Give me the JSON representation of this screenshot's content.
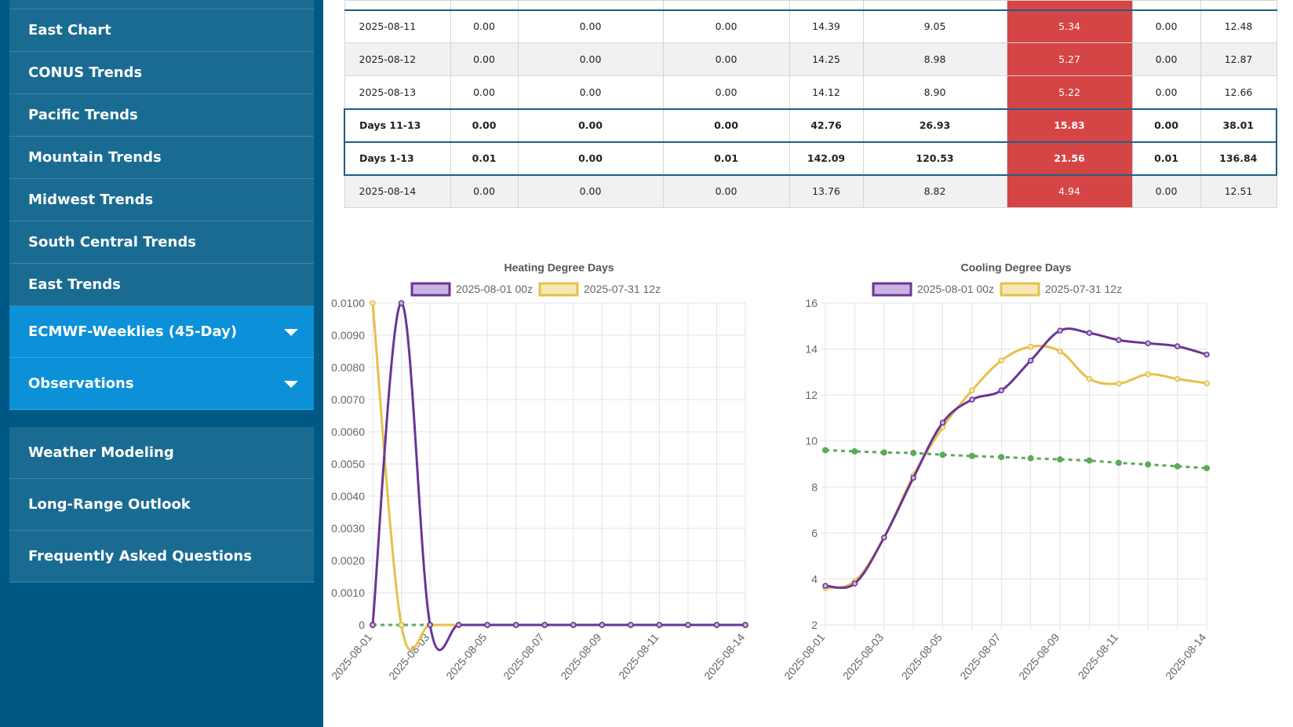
{
  "sidebar": {
    "items": [
      {
        "label": "East Chart"
      },
      {
        "label": "CONUS Trends"
      },
      {
        "label": "Pacific Trends"
      },
      {
        "label": "Mountain Trends"
      },
      {
        "label": "Midwest Trends"
      },
      {
        "label": "South Central Trends"
      },
      {
        "label": "East Trends"
      }
    ],
    "dropdowns": [
      {
        "label": "ECMWF-Weeklies (45-Day)"
      },
      {
        "label": "Observations"
      }
    ],
    "bottom_items": [
      {
        "label": "Weather Modeling"
      },
      {
        "label": "Long-Range Outlook"
      },
      {
        "label": "Frequently Asked Questions"
      }
    ]
  },
  "table": {
    "rows": [
      {
        "cells": [
          "2025-08-11",
          "0.00",
          "0.00",
          "0.00",
          "14.39",
          "9.05",
          "5.34",
          "0.00",
          "12.48"
        ],
        "kind": "normal"
      },
      {
        "cells": [
          "2025-08-12",
          "0.00",
          "0.00",
          "0.00",
          "14.25",
          "8.98",
          "5.27",
          "0.00",
          "12.87"
        ],
        "kind": "alt"
      },
      {
        "cells": [
          "2025-08-13",
          "0.00",
          "0.00",
          "0.00",
          "14.12",
          "8.90",
          "5.22",
          "0.00",
          "12.66"
        ],
        "kind": "normal"
      },
      {
        "cells": [
          "Days 11-13",
          "0.00",
          "0.00",
          "0.00",
          "42.76",
          "26.93",
          "15.83",
          "0.00",
          "38.01"
        ],
        "kind": "sum1"
      },
      {
        "cells": [
          "Days 1-13",
          "0.01",
          "0.00",
          "0.01",
          "142.09",
          "120.53",
          "21.56",
          "0.01",
          "136.84"
        ],
        "kind": "sum2"
      },
      {
        "cells": [
          "2025-08-14",
          "0.00",
          "0.00",
          "0.00",
          "13.76",
          "8.82",
          "4.94",
          "0.00",
          "12.51"
        ],
        "kind": "alt"
      }
    ]
  },
  "colors": {
    "series_a": "#6a3596",
    "series_a_fill": "#c9b3df",
    "series_b": "#e6c04a",
    "series_b_fill": "#f6e7b6",
    "normal": "#5aaa5a",
    "highlight": "#d64545"
  },
  "chart_data": [
    {
      "type": "line",
      "title": "Heating Degree Days",
      "x": [
        "2025-08-01",
        "2025-08-02",
        "2025-08-03",
        "2025-08-04",
        "2025-08-05",
        "2025-08-06",
        "2025-08-07",
        "2025-08-08",
        "2025-08-09",
        "2025-08-10",
        "2025-08-11",
        "2025-08-12",
        "2025-08-13",
        "2025-08-14"
      ],
      "x_tick_labels": [
        "2025-08-01",
        "2025-08-03",
        "2025-08-05",
        "2025-08-07",
        "2025-08-09",
        "2025-08-11",
        "2025-08-14"
      ],
      "y_ticks": [
        "0",
        "0.0010",
        "0.0020",
        "0.0030",
        "0.0040",
        "0.0050",
        "0.0060",
        "0.0070",
        "0.0080",
        "0.0090",
        "0.0100"
      ],
      "ylim": [
        0,
        0.01
      ],
      "grid": true,
      "legend": "top",
      "series": [
        {
          "name": "2025-08-01 00z",
          "values": [
            0,
            0.01,
            0,
            0,
            0,
            0,
            0,
            0,
            0,
            0,
            0,
            0,
            0,
            0
          ]
        },
        {
          "name": "2025-07-31 12z",
          "values": [
            0.01,
            0,
            0,
            0,
            0,
            0,
            0,
            0,
            0,
            0,
            0,
            0,
            0,
            0
          ]
        },
        {
          "values": [
            0,
            0,
            0,
            0,
            0,
            0,
            0,
            0,
            0,
            0,
            0,
            0,
            0,
            0
          ],
          "dashed": true
        }
      ]
    },
    {
      "type": "line",
      "title": "Cooling Degree Days",
      "x": [
        "2025-08-01",
        "2025-08-02",
        "2025-08-03",
        "2025-08-04",
        "2025-08-05",
        "2025-08-06",
        "2025-08-07",
        "2025-08-08",
        "2025-08-09",
        "2025-08-10",
        "2025-08-11",
        "2025-08-12",
        "2025-08-13",
        "2025-08-14"
      ],
      "x_tick_labels": [
        "2025-08-01",
        "2025-08-03",
        "2025-08-05",
        "2025-08-07",
        "2025-08-09",
        "2025-08-11",
        "2025-08-14"
      ],
      "y_ticks": [
        "2",
        "4",
        "6",
        "8",
        "10",
        "12",
        "14",
        "16"
      ],
      "ylim": [
        2,
        16
      ],
      "grid": true,
      "legend": "top",
      "series": [
        {
          "name": "2025-08-01 00z",
          "values": [
            3.7,
            3.8,
            5.8,
            8.4,
            10.8,
            11.8,
            12.2,
            13.5,
            14.8,
            14.7,
            14.39,
            14.25,
            14.12,
            13.76
          ]
        },
        {
          "name": "2025-07-31 12z",
          "values": [
            3.6,
            3.9,
            5.8,
            8.5,
            10.6,
            12.2,
            13.5,
            14.1,
            13.9,
            12.7,
            12.5,
            12.9,
            12.7,
            12.51
          ]
        },
        {
          "values": [
            9.6,
            9.55,
            9.5,
            9.48,
            9.4,
            9.35,
            9.3,
            9.25,
            9.2,
            9.15,
            9.05,
            8.98,
            8.9,
            8.82
          ],
          "dashed": true
        }
      ]
    }
  ]
}
